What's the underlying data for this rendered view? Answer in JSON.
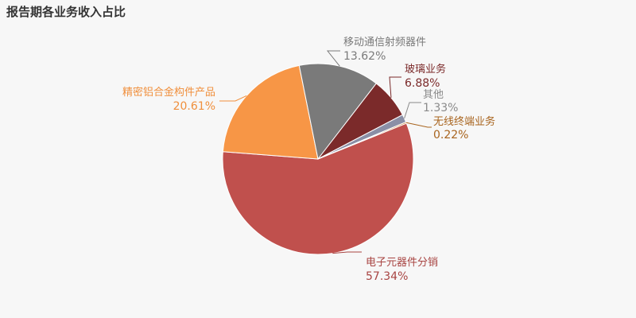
{
  "chart_data": {
    "type": "pie",
    "title": "报告期各业务收入占比",
    "slices": [
      {
        "name": "电子元器件分销",
        "value": 57.34,
        "label": "57.34%",
        "color": "#c0504d",
        "labelColor": "#a84442"
      },
      {
        "name": "精密铝合金构件产品",
        "value": 20.61,
        "label": "20.61%",
        "color": "#f79646",
        "labelColor": "#f08f3c"
      },
      {
        "name": "移动通信射频器件",
        "value": 13.62,
        "label": "13.62%",
        "color": "#7a7a7a",
        "labelColor": "#7a7a7a"
      },
      {
        "name": "玻璃业务",
        "value": 6.88,
        "label": "6.88%",
        "color": "#7b2a2a",
        "labelColor": "#7b2a2a"
      },
      {
        "name": "其他",
        "value": 1.33,
        "label": "1.33%",
        "color": "#8a8fa6",
        "labelColor": "#8a8a8a"
      },
      {
        "name": "无线终端业务",
        "value": 0.22,
        "label": "0.22%",
        "color": "#c07a2a",
        "labelColor": "#a8641e"
      }
    ]
  }
}
